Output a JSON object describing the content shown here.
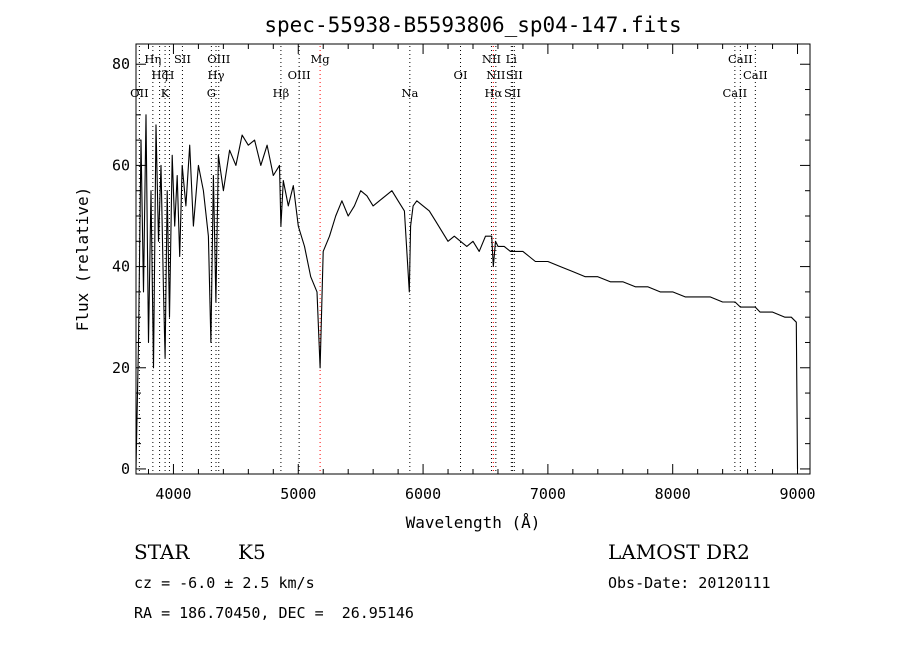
{
  "chart_data": {
    "type": "line",
    "title": "spec-55938-B5593806_sp04-147.fits",
    "xlabel": "Wavelength (Å)",
    "ylabel": "Flux (relative)",
    "xlim": [
      3700,
      9100
    ],
    "ylim": [
      -1,
      84
    ],
    "x_ticks": [
      4000,
      5000,
      6000,
      7000,
      8000,
      9000
    ],
    "y_ticks": [
      0,
      20,
      40,
      60,
      80
    ],
    "grid": false,
    "series": [
      {
        "color": "#000000",
        "x": [
          3700,
          3720,
          3740,
          3760,
          3780,
          3800,
          3820,
          3840,
          3860,
          3880,
          3900,
          3920,
          3933,
          3950,
          3968,
          3990,
          4010,
          4030,
          4050,
          4070,
          4100,
          4130,
          4160,
          4200,
          4240,
          4280,
          4300,
          4320,
          4340,
          4360,
          4400,
          4450,
          4500,
          4550,
          4600,
          4650,
          4700,
          4750,
          4800,
          4850,
          4861,
          4880,
          4920,
          4960,
          5000,
          5050,
          5100,
          5150,
          5175,
          5200,
          5250,
          5300,
          5350,
          5400,
          5450,
          5500,
          5550,
          5600,
          5650,
          5700,
          5750,
          5800,
          5850,
          5890,
          5900,
          5920,
          5950,
          6000,
          6050,
          6100,
          6150,
          6200,
          6250,
          6300,
          6350,
          6400,
          6450,
          6500,
          6550,
          6563,
          6580,
          6600,
          6650,
          6700,
          6750,
          6800,
          6850,
          6900,
          6950,
          7000,
          7100,
          7200,
          7300,
          7400,
          7500,
          7600,
          7700,
          7800,
          7900,
          8000,
          8100,
          8200,
          8300,
          8400,
          8500,
          8542,
          8600,
          8662,
          8700,
          8800,
          8900,
          8950,
          8990,
          9000
        ],
        "values": [
          0,
          25,
          65,
          35,
          70,
          25,
          55,
          20,
          68,
          45,
          60,
          35,
          22,
          55,
          30,
          62,
          48,
          58,
          42,
          60,
          52,
          64,
          48,
          60,
          55,
          46,
          25,
          58,
          33,
          62,
          55,
          63,
          60,
          66,
          64,
          65,
          60,
          64,
          58,
          60,
          48,
          57,
          52,
          56,
          48,
          44,
          38,
          35,
          20,
          43,
          46,
          50,
          53,
          50,
          52,
          55,
          54,
          52,
          53,
          54,
          55,
          53,
          51,
          35,
          48,
          52,
          53,
          52,
          51,
          49,
          47,
          45,
          46,
          45,
          44,
          45,
          43,
          46,
          46,
          40,
          45,
          44,
          44,
          43,
          43,
          43,
          42,
          41,
          41,
          41,
          40,
          39,
          38,
          38,
          37,
          37,
          36,
          36,
          35,
          35,
          34,
          34,
          34,
          33,
          33,
          32,
          32,
          32,
          31,
          31,
          30,
          30,
          29,
          0
        ]
      }
    ],
    "line_markers": [
      {
        "label": "OII",
        "wavelength": 3727,
        "row": 3,
        "color": "#000000"
      },
      {
        "label": "Hη",
        "wavelength": 3835,
        "row": 1,
        "color": "#000000"
      },
      {
        "label": "Hζ",
        "wavelength": 3889,
        "row": 2,
        "color": "#000000"
      },
      {
        "label": "K",
        "wavelength": 3933,
        "row": 3,
        "color": "#000000"
      },
      {
        "label": "H",
        "wavelength": 3968,
        "row": 2,
        "color": "#000000"
      },
      {
        "label": "SII",
        "wavelength": 4072,
        "row": 1,
        "color": "#000000"
      },
      {
        "label": "G",
        "wavelength": 4304,
        "row": 3,
        "color": "#000000"
      },
      {
        "label": "Hγ",
        "wavelength": 4341,
        "row": 2,
        "color": "#000000"
      },
      {
        "label": "OIII",
        "wavelength": 4363,
        "row": 1,
        "color": "#000000"
      },
      {
        "label": "Hβ",
        "wavelength": 4861,
        "row": 3,
        "color": "#000000"
      },
      {
        "label": "OIII",
        "wavelength": 5007,
        "row": 2,
        "color": "#000000"
      },
      {
        "label": "Mg",
        "wavelength": 5175,
        "row": 1,
        "color": "#ff0000"
      },
      {
        "label": "Na",
        "wavelength": 5894,
        "row": 3,
        "color": "#000000"
      },
      {
        "label": "OI",
        "wavelength": 6300,
        "row": 2,
        "color": "#000000"
      },
      {
        "label": "NII",
        "wavelength": 6548,
        "row": 1,
        "color": "#000000"
      },
      {
        "label": "Hα",
        "wavelength": 6563,
        "row": 3,
        "color": "#ff0000"
      },
      {
        "label": "NII",
        "wavelength": 6583,
        "row": 2,
        "color": "#000000"
      },
      {
        "label": "Li",
        "wavelength": 6707,
        "row": 1,
        "color": "#000000"
      },
      {
        "label": "SII",
        "wavelength": 6716,
        "row": 3,
        "color": "#000000"
      },
      {
        "label": "SII",
        "wavelength": 6731,
        "row": 2,
        "color": "#000000"
      },
      {
        "label": "CaII",
        "wavelength": 8498,
        "row": 3,
        "color": "#000000"
      },
      {
        "label": "CaII",
        "wavelength": 8542,
        "row": 1,
        "color": "#000000"
      },
      {
        "label": "CaII",
        "wavelength": 8662,
        "row": 2,
        "color": "#000000"
      }
    ]
  },
  "info": {
    "class_label": "STAR",
    "subclass_label": "K5",
    "survey": "LAMOST DR2",
    "cz": "cz = -6.0 ± 2.5 km/s",
    "obs_date": "Obs-Date: 20120111",
    "coords": "RA = 186.70450, DEC =  26.95146"
  }
}
